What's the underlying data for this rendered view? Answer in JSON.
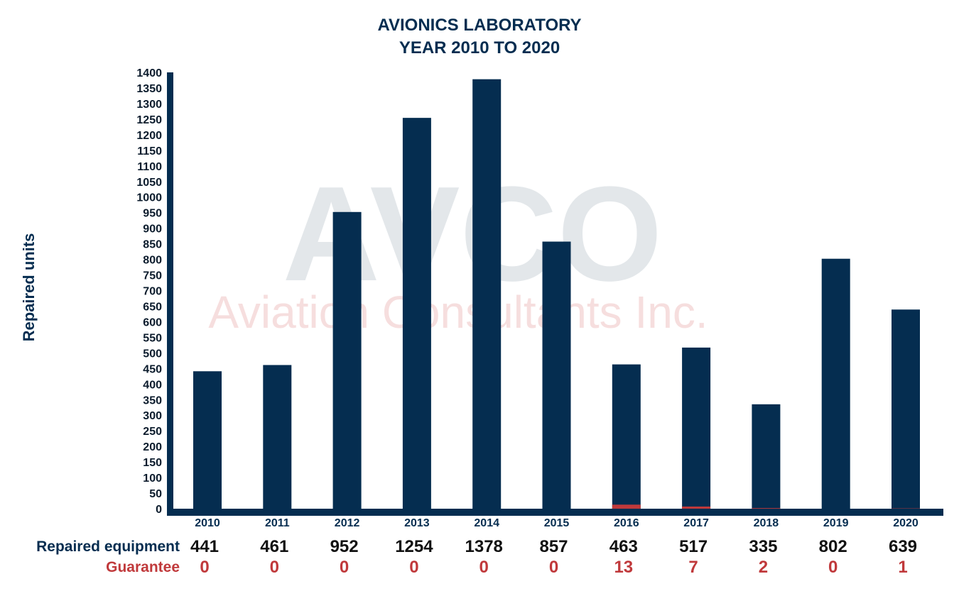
{
  "watermark": {
    "logo_text": "AVCO",
    "company_text": "Aviation Consultants Inc."
  },
  "colors": {
    "bar": "#052d50",
    "guarantee": "#c0393b",
    "axis": "#052d50",
    "title": "#052d50"
  },
  "chart_data": {
    "type": "bar",
    "title": [
      "AVIONICS LABORATORY",
      "YEAR 2010 TO 2020"
    ],
    "xlabel": "",
    "ylabel": "Repaired units",
    "ylim": [
      0,
      1400
    ],
    "yticks": [
      0,
      50,
      100,
      150,
      200,
      250,
      300,
      350,
      400,
      450,
      500,
      550,
      600,
      650,
      700,
      750,
      800,
      850,
      900,
      950,
      1000,
      1050,
      1100,
      1150,
      1200,
      1250,
      1300,
      1350,
      1400
    ],
    "grid": false,
    "categories": [
      "2010",
      "2011",
      "2012",
      "2013",
      "2014",
      "2015",
      "2016",
      "2017",
      "2018",
      "2019",
      "2020"
    ],
    "series": [
      {
        "name": "Repaired equipment",
        "values": [
          441,
          461,
          952,
          1254,
          1378,
          857,
          463,
          517,
          335,
          802,
          639
        ]
      },
      {
        "name": "Guarantee",
        "values": [
          0,
          0,
          0,
          0,
          0,
          0,
          13,
          7,
          2,
          0,
          1
        ]
      }
    ]
  }
}
